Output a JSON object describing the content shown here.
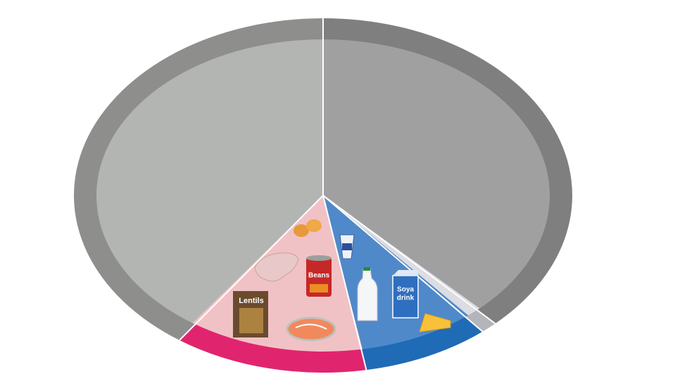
{
  "labels": {
    "lentils": "Lentils",
    "beans": "Beans",
    "soya": [
      "Soya",
      "drink"
    ]
  }
}
